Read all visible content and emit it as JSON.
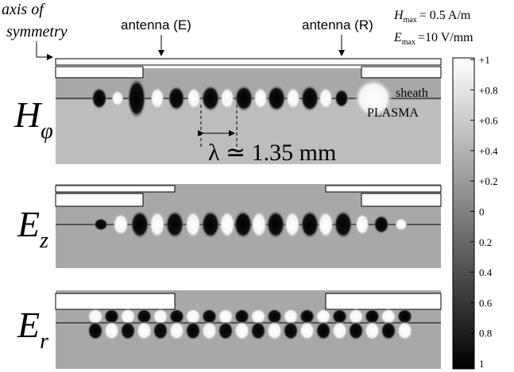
{
  "annotations": {
    "axis_label": [
      "axis of",
      "symmetry"
    ],
    "antenna_e": "antenna (E)",
    "antenna_r": "antenna (R)",
    "h_max": {
      "symbol": "H",
      "subscript": "max",
      "value": "= 0.5 A/m"
    },
    "e_max": {
      "symbol": "E",
      "subscript": "max",
      "value": "=10 V/mm"
    },
    "sheath": "sheath",
    "plasma": "PLASMA",
    "wavelength": "λ ≃ 1.35 mm"
  },
  "panels": [
    {
      "symbol": "H",
      "subscript": "φ"
    },
    {
      "symbol": "E",
      "subscript": "z"
    },
    {
      "symbol": "E",
      "subscript": "r"
    }
  ],
  "colorbar": {
    "ticks": [
      "+1",
      "+0.8",
      "+0.6",
      "+0.4",
      "+0.2",
      "0",
      "0.2",
      "0.4",
      "0.6",
      "0.8",
      "1"
    ]
  }
}
